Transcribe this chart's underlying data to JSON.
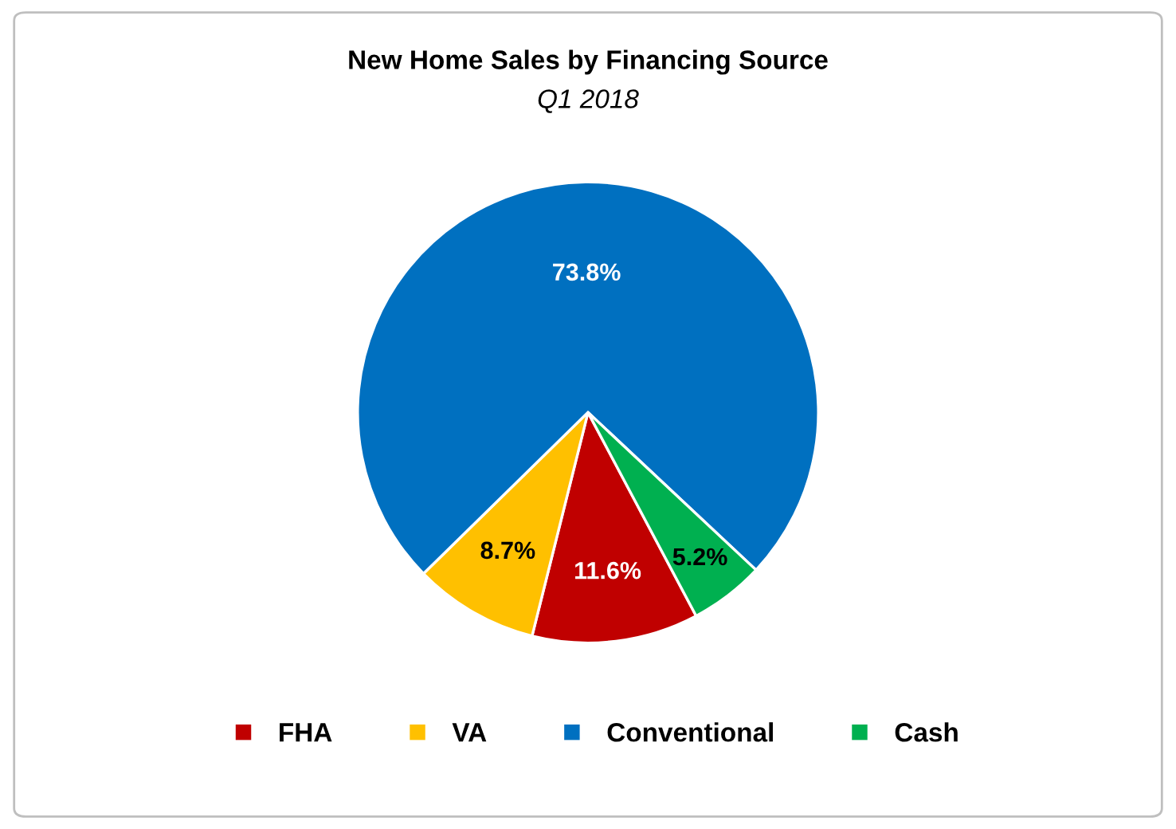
{
  "chart_data": {
    "type": "pie",
    "title": "New Home Sales by Financing Source",
    "subtitle": "Q1 2018",
    "categories": [
      "FHA",
      "VA",
      "Conventional",
      "Cash"
    ],
    "values": [
      11.6,
      8.7,
      73.8,
      5.2
    ],
    "colors": [
      "#c00000",
      "#ffc000",
      "#0070c0",
      "#00b050"
    ],
    "value_labels": [
      "11.6%",
      "8.7%",
      "73.8%",
      "5.2%"
    ],
    "legend": "bottom"
  }
}
